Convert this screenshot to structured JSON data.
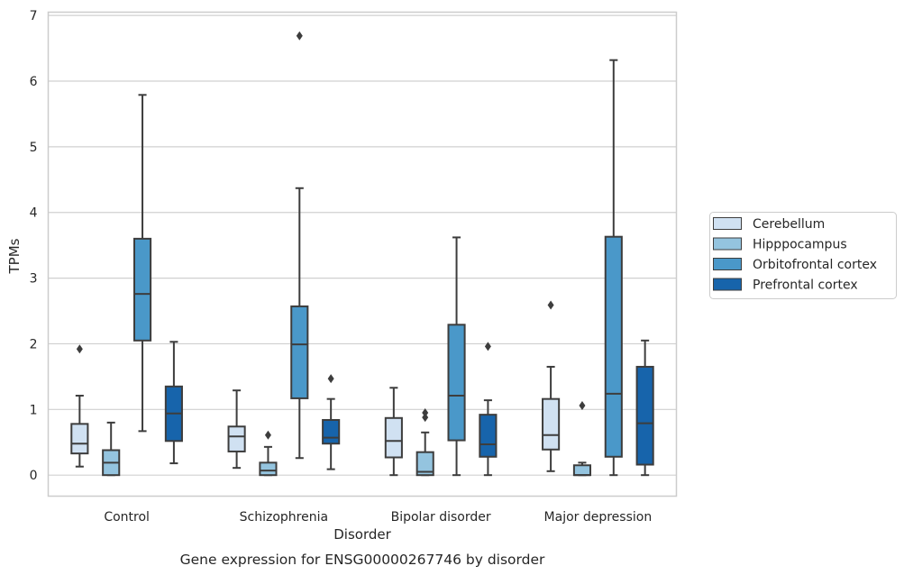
{
  "chart_data": {
    "type": "box",
    "caption": "Gene expression for ENSG00000267746 by disorder",
    "xlabel": "Disorder",
    "ylabel": "TPMs",
    "ylim": [
      -0.32,
      7.05
    ],
    "yticks": [
      0,
      1,
      2,
      3,
      4,
      5,
      6,
      7
    ],
    "grid": true,
    "legend_position": "right",
    "categories": [
      "Control",
      "Schizophrenia",
      "Bipolar disorder",
      "Major depression"
    ],
    "series": [
      {
        "name": "Cerebellum",
        "color": "#d0e1f2",
        "boxes": [
          {
            "whisker_low": 0.13,
            "q1": 0.33,
            "median": 0.48,
            "q3": 0.78,
            "whisker_high": 1.21,
            "outliers": [
              1.92
            ]
          },
          {
            "whisker_low": 0.11,
            "q1": 0.36,
            "median": 0.59,
            "q3": 0.74,
            "whisker_high": 1.29,
            "outliers": []
          },
          {
            "whisker_low": 0.0,
            "q1": 0.27,
            "median": 0.52,
            "q3": 0.87,
            "whisker_high": 1.33,
            "outliers": []
          },
          {
            "whisker_low": 0.06,
            "q1": 0.39,
            "median": 0.61,
            "q3": 1.16,
            "whisker_high": 1.65,
            "outliers": [
              2.59
            ]
          }
        ]
      },
      {
        "name": "Hipppocampus",
        "color": "#94c4df",
        "boxes": [
          {
            "whisker_low": 0.0,
            "q1": 0.0,
            "median": 0.19,
            "q3": 0.38,
            "whisker_high": 0.8,
            "outliers": []
          },
          {
            "whisker_low": 0.0,
            "q1": 0.0,
            "median": 0.07,
            "q3": 0.19,
            "whisker_high": 0.43,
            "outliers": [
              0.61
            ]
          },
          {
            "whisker_low": 0.0,
            "q1": 0.0,
            "median": 0.05,
            "q3": 0.35,
            "whisker_high": 0.65,
            "outliers": [
              0.88,
              0.95
            ]
          },
          {
            "whisker_low": 0.0,
            "q1": 0.0,
            "median": 0.0,
            "q3": 0.15,
            "whisker_high": 0.19,
            "outliers": [
              1.06
            ]
          }
        ]
      },
      {
        "name": "Orbitofrontal cortex",
        "color": "#4a98c9",
        "boxes": [
          {
            "whisker_low": 0.67,
            "q1": 2.05,
            "median": 2.76,
            "q3": 3.6,
            "whisker_high": 5.79,
            "outliers": []
          },
          {
            "whisker_low": 0.26,
            "q1": 1.17,
            "median": 1.99,
            "q3": 2.57,
            "whisker_high": 4.37,
            "outliers": [
              6.69
            ]
          },
          {
            "whisker_low": 0.0,
            "q1": 0.53,
            "median": 1.21,
            "q3": 2.29,
            "whisker_high": 3.62,
            "outliers": []
          },
          {
            "whisker_low": 0.0,
            "q1": 0.28,
            "median": 1.24,
            "q3": 3.63,
            "whisker_high": 6.32,
            "outliers": []
          }
        ]
      },
      {
        "name": "Prefrontal cortex",
        "color": "#1764ab",
        "boxes": [
          {
            "whisker_low": 0.18,
            "q1": 0.52,
            "median": 0.94,
            "q3": 1.35,
            "whisker_high": 2.03,
            "outliers": []
          },
          {
            "whisker_low": 0.09,
            "q1": 0.48,
            "median": 0.57,
            "q3": 0.84,
            "whisker_high": 1.16,
            "outliers": [
              1.47
            ]
          },
          {
            "whisker_low": 0.0,
            "q1": 0.28,
            "median": 0.47,
            "q3": 0.92,
            "whisker_high": 1.14,
            "outliers": [
              1.96
            ]
          },
          {
            "whisker_low": 0.0,
            "q1": 0.16,
            "median": 0.79,
            "q3": 1.65,
            "whisker_high": 2.05,
            "outliers": []
          }
        ]
      }
    ]
  }
}
